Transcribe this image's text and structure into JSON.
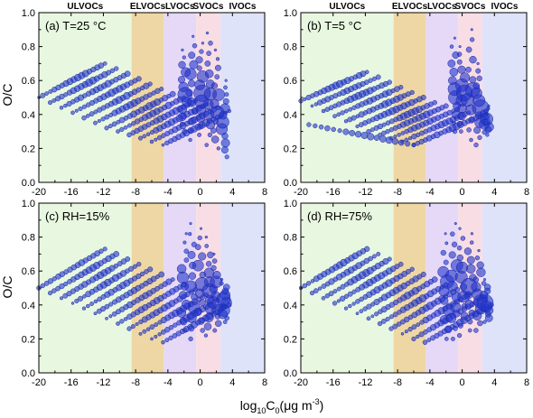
{
  "chart_data": {
    "type": "scatter",
    "xlim": [
      -20,
      8
    ],
    "ylim": [
      0.0,
      1.0
    ],
    "xticks": [
      "-20",
      "-16",
      "-12",
      "-8",
      "-4",
      "0",
      "4",
      "8"
    ],
    "yticks": [
      "0.0",
      "0.2",
      "0.4",
      "0.6",
      "0.8",
      "1.0"
    ],
    "xlabel_base": "log",
    "xlabel_sub1": "10",
    "xlabel_mid": "C",
    "xlabel_sub2": "0",
    "xlabel_unit": "(μg m",
    "xlabel_exp": "-3",
    "xlabel_close": ")",
    "ylabel": "O/C",
    "grid": false,
    "volatility_classes": [
      {
        "label": "ULVOCs",
        "from": -20,
        "to": -8.5,
        "color": "#e8f7e0"
      },
      {
        "label": "ELVOCs",
        "from": -8.5,
        "to": -4.5,
        "color": "#eed7a4"
      },
      {
        "label": "LVOCs",
        "from": -4.5,
        "to": -0.5,
        "color": "#e6d9f7"
      },
      {
        "label": "SVOCs",
        "from": -0.5,
        "to": 2.5,
        "color": "#f8dde5"
      },
      {
        "label": "IVOCs",
        "from": 2.5,
        "to": 8,
        "color": "#dfe3fa"
      }
    ],
    "marker_color": "#2233cc",
    "panels": [
      {
        "label": "(a) T=25 °C",
        "show_class_labels": true,
        "bands": [
          {
            "x": [
              -20.0,
              -11.8
            ],
            "y": [
              0.5,
              0.7
            ]
          },
          {
            "x": [
              -18.6,
              -10.4
            ],
            "y": [
              0.47,
              0.67
            ]
          },
          {
            "x": [
              -17.2,
              -9.0
            ],
            "y": [
              0.44,
              0.64
            ]
          },
          {
            "x": [
              -15.8,
              -7.6
            ],
            "y": [
              0.41,
              0.61
            ]
          },
          {
            "x": [
              -14.4,
              -6.2
            ],
            "y": [
              0.38,
              0.58
            ]
          },
          {
            "x": [
              -13.0,
              -4.8
            ],
            "y": [
              0.35,
              0.55
            ]
          },
          {
            "x": [
              -11.6,
              -3.4
            ],
            "y": [
              0.32,
              0.52
            ]
          },
          {
            "x": [
              -10.2,
              -2.0
            ],
            "y": [
              0.3,
              0.5
            ]
          },
          {
            "x": [
              -8.8,
              -0.6
            ],
            "y": [
              0.28,
              0.48
            ]
          },
          {
            "x": [
              -7.4,
              0.8
            ],
            "y": [
              0.26,
              0.46
            ]
          },
          {
            "x": [
              -6.0,
              2.2
            ],
            "y": [
              0.24,
              0.44
            ]
          },
          {
            "x": [
              -4.6,
              3.6
            ],
            "y": [
              0.22,
              0.42
            ]
          }
        ],
        "columns": [
          {
            "x": -2.0,
            "y": [
              0.3,
              0.78
            ]
          },
          {
            "x": -1.0,
            "y": [
              0.25,
              0.86
            ]
          },
          {
            "x": 0.0,
            "y": [
              0.28,
              0.82
            ]
          },
          {
            "x": 1.0,
            "y": [
              0.22,
              0.88
            ]
          },
          {
            "x": 2.0,
            "y": [
              0.2,
              0.78
            ]
          },
          {
            "x": 3.0,
            "y": [
              0.15,
              0.6
            ]
          }
        ]
      },
      {
        "label": "(b) T=5 °C",
        "show_class_labels": true,
        "bands": [
          {
            "x": [
              -20.0,
              -11.8
            ],
            "y": [
              0.48,
              0.65
            ]
          },
          {
            "x": [
              -18.6,
              -10.4
            ],
            "y": [
              0.45,
              0.62
            ]
          },
          {
            "x": [
              -17.2,
              -9.0
            ],
            "y": [
              0.42,
              0.59
            ]
          },
          {
            "x": [
              -15.8,
              -7.6
            ],
            "y": [
              0.39,
              0.56
            ]
          },
          {
            "x": [
              -14.4,
              -6.2
            ],
            "y": [
              0.36,
              0.53
            ]
          },
          {
            "x": [
              -13.0,
              -4.8
            ],
            "y": [
              0.33,
              0.5
            ]
          },
          {
            "x": [
              -11.6,
              -3.4
            ],
            "y": [
              0.3,
              0.47
            ]
          },
          {
            "x": [
              -10.2,
              -2.0
            ],
            "y": [
              0.28,
              0.45
            ]
          },
          {
            "x": [
              -8.8,
              -0.6
            ],
            "y": [
              0.26,
              0.43
            ]
          },
          {
            "x": [
              -7.4,
              0.8
            ],
            "y": [
              0.24,
              0.41
            ]
          },
          {
            "x": [
              -6.0,
              2.2
            ],
            "y": [
              0.22,
              0.39
            ]
          },
          {
            "x": [
              -19.0,
              -6.0
            ],
            "y": [
              0.34,
              0.22
            ]
          }
        ],
        "columns": [
          {
            "x": -1.0,
            "y": [
              0.3,
              0.85
            ]
          },
          {
            "x": 0.0,
            "y": [
              0.3,
              0.8
            ]
          },
          {
            "x": 1.0,
            "y": [
              0.25,
              0.9
            ]
          },
          {
            "x": 2.0,
            "y": [
              0.22,
              0.7
            ]
          },
          {
            "x": 3.0,
            "y": [
              0.28,
              0.45
            ]
          }
        ]
      },
      {
        "label": "(c) RH=15%",
        "show_class_labels": false,
        "bands": [
          {
            "x": [
              -20.0,
              -11.8
            ],
            "y": [
              0.5,
              0.73
            ]
          },
          {
            "x": [
              -18.6,
              -10.4
            ],
            "y": [
              0.47,
              0.7
            ]
          },
          {
            "x": [
              -17.2,
              -9.0
            ],
            "y": [
              0.44,
              0.67
            ]
          },
          {
            "x": [
              -15.8,
              -7.6
            ],
            "y": [
              0.41,
              0.64
            ]
          },
          {
            "x": [
              -14.4,
              -6.2
            ],
            "y": [
              0.38,
              0.61
            ]
          },
          {
            "x": [
              -13.0,
              -4.8
            ],
            "y": [
              0.35,
              0.58
            ]
          },
          {
            "x": [
              -11.6,
              -3.4
            ],
            "y": [
              0.32,
              0.55
            ]
          },
          {
            "x": [
              -10.2,
              -2.0
            ],
            "y": [
              0.29,
              0.52
            ]
          },
          {
            "x": [
              -8.8,
              -0.6
            ],
            "y": [
              0.26,
              0.49
            ]
          },
          {
            "x": [
              -7.4,
              0.8
            ],
            "y": [
              0.23,
              0.46
            ]
          },
          {
            "x": [
              -6.0,
              2.2
            ],
            "y": [
              0.2,
              0.43
            ]
          },
          {
            "x": [
              -4.6,
              3.6
            ],
            "y": [
              0.18,
              0.4
            ]
          }
        ],
        "columns": [
          {
            "x": -2.0,
            "y": [
              0.25,
              0.82
            ]
          },
          {
            "x": -1.0,
            "y": [
              0.2,
              0.88
            ]
          },
          {
            "x": 0.0,
            "y": [
              0.25,
              0.85
            ]
          },
          {
            "x": 1.0,
            "y": [
              0.22,
              0.8
            ]
          },
          {
            "x": 2.0,
            "y": [
              0.25,
              0.7
            ]
          },
          {
            "x": 3.0,
            "y": [
              0.3,
              0.55
            ]
          }
        ]
      },
      {
        "label": "(d) RH=75%",
        "show_class_labels": false,
        "bands": [
          {
            "x": [
              -20.0,
              -11.8
            ],
            "y": [
              0.5,
              0.73
            ]
          },
          {
            "x": [
              -18.6,
              -10.4
            ],
            "y": [
              0.47,
              0.7
            ]
          },
          {
            "x": [
              -17.2,
              -9.0
            ],
            "y": [
              0.44,
              0.67
            ]
          },
          {
            "x": [
              -15.8,
              -7.6
            ],
            "y": [
              0.41,
              0.64
            ]
          },
          {
            "x": [
              -14.4,
              -6.2
            ],
            "y": [
              0.38,
              0.61
            ]
          },
          {
            "x": [
              -13.0,
              -4.8
            ],
            "y": [
              0.35,
              0.58
            ]
          },
          {
            "x": [
              -11.6,
              -3.4
            ],
            "y": [
              0.32,
              0.55
            ]
          },
          {
            "x": [
              -10.2,
              -2.0
            ],
            "y": [
              0.29,
              0.52
            ]
          },
          {
            "x": [
              -8.8,
              -0.6
            ],
            "y": [
              0.26,
              0.49
            ]
          },
          {
            "x": [
              -7.4,
              0.8
            ],
            "y": [
              0.23,
              0.46
            ]
          },
          {
            "x": [
              -6.0,
              2.2
            ],
            "y": [
              0.2,
              0.43
            ]
          },
          {
            "x": [
              -4.6,
              3.6
            ],
            "y": [
              0.18,
              0.4
            ]
          }
        ],
        "columns": [
          {
            "x": -2.0,
            "y": [
              0.2,
              0.82
            ]
          },
          {
            "x": -1.0,
            "y": [
              0.2,
              0.88
            ]
          },
          {
            "x": 0.0,
            "y": [
              0.22,
              0.85
            ]
          },
          {
            "x": 1.0,
            "y": [
              0.25,
              0.82
            ]
          },
          {
            "x": 2.0,
            "y": [
              0.25,
              0.72
            ]
          },
          {
            "x": 3.0,
            "y": [
              0.3,
              0.55
            ]
          }
        ]
      }
    ]
  }
}
